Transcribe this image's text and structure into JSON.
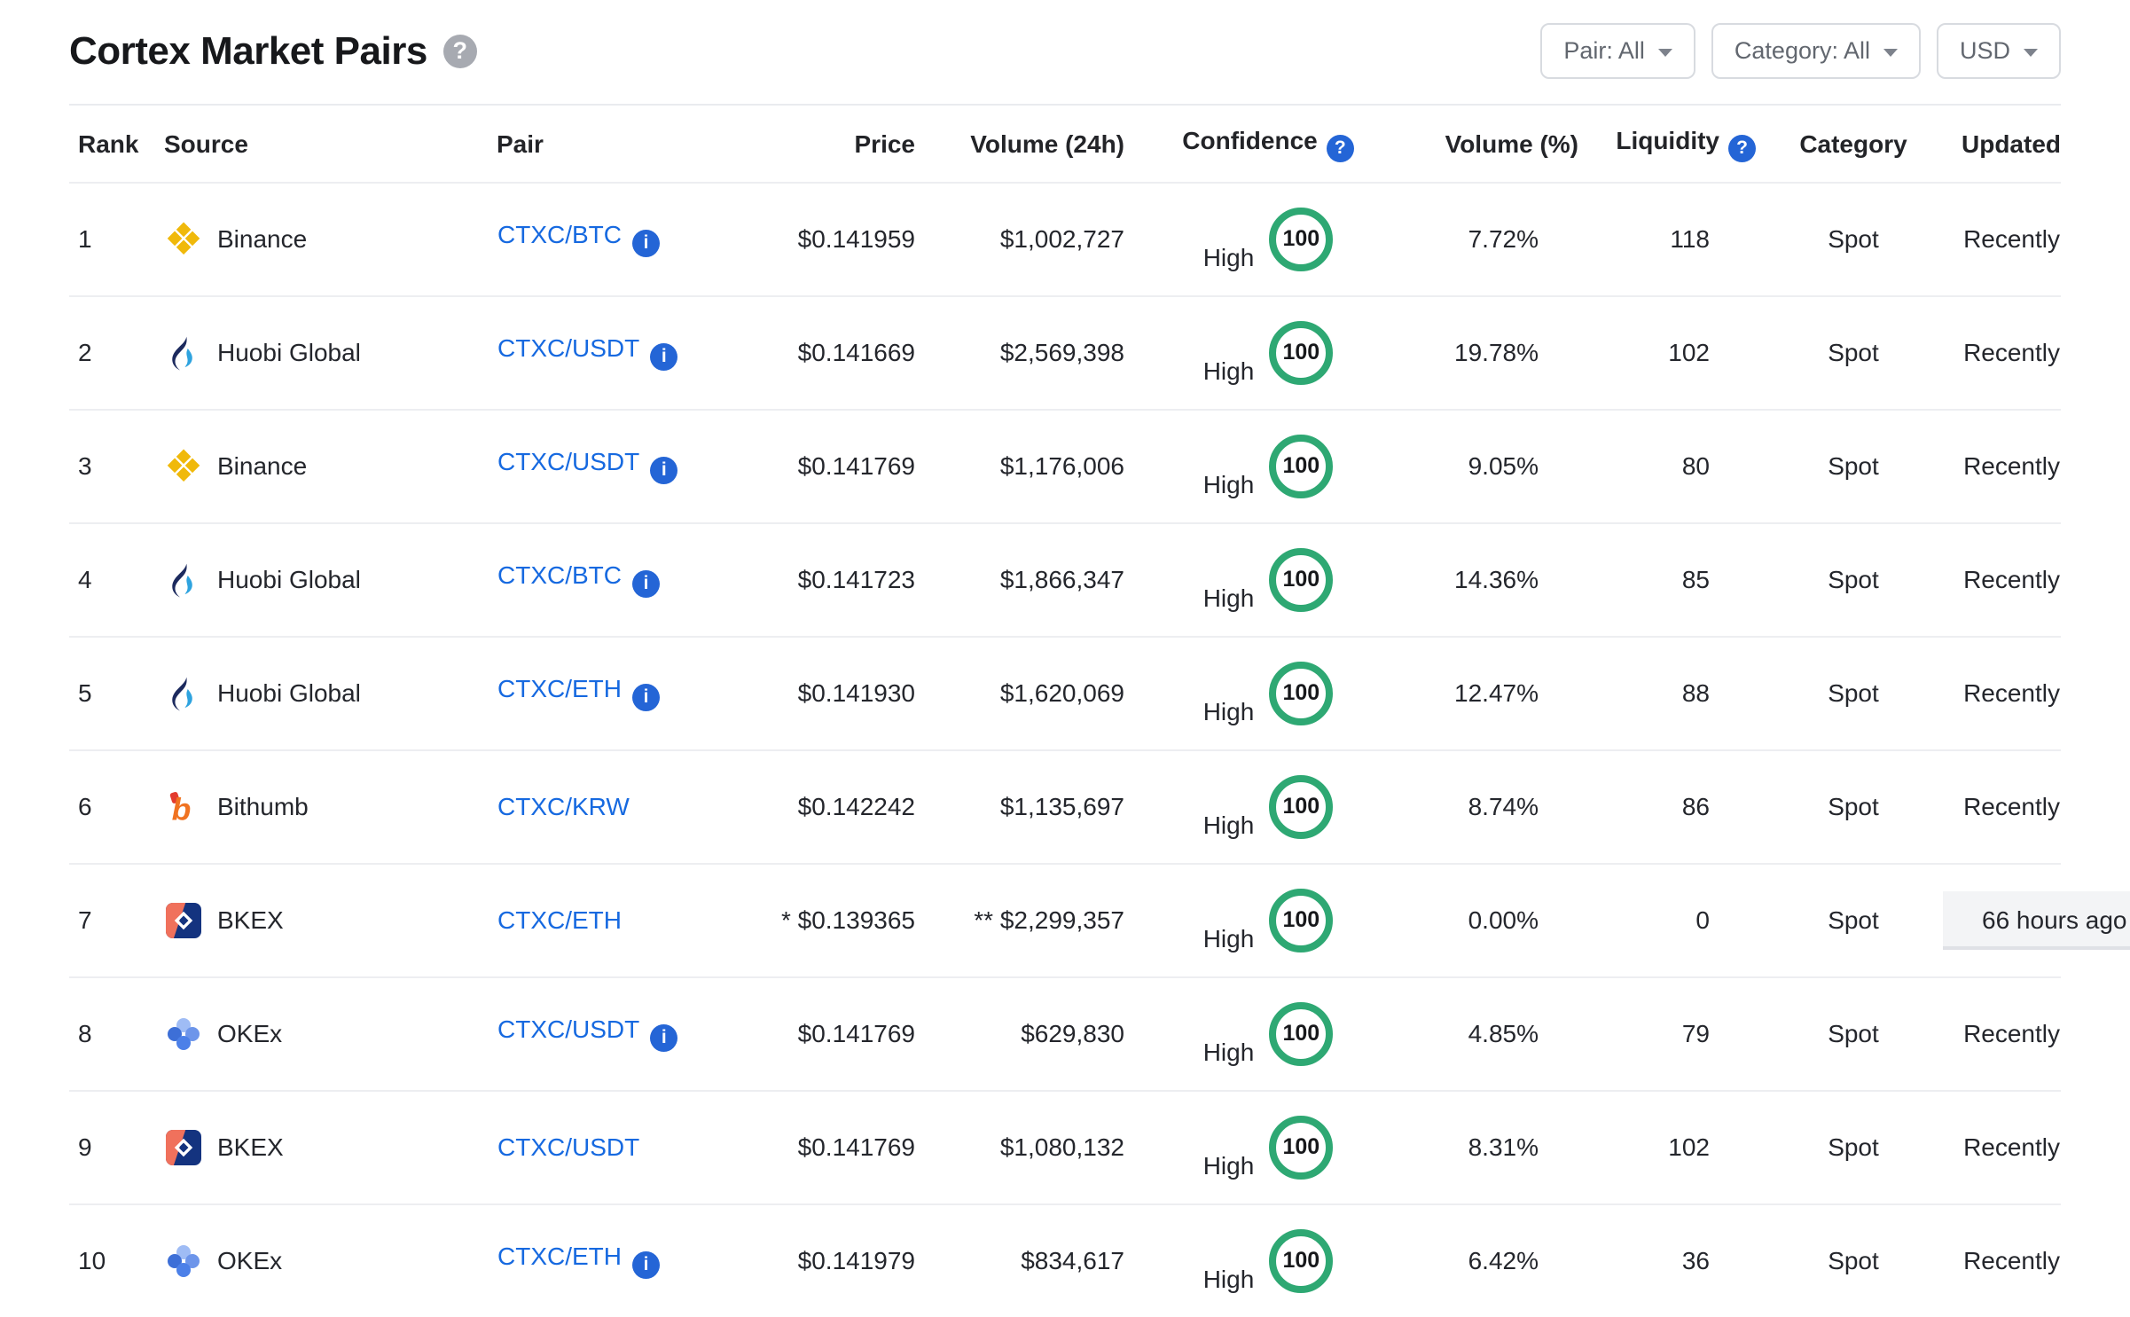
{
  "page": {
    "title": "Cortex Market Pairs"
  },
  "icons": {
    "help_glyph": "?",
    "info_glyph": "i"
  },
  "filters": [
    {
      "label": "Pair: All"
    },
    {
      "label": "Category: All"
    },
    {
      "label": "USD"
    }
  ],
  "table": {
    "columns": [
      {
        "label": "Rank"
      },
      {
        "label": "Source"
      },
      {
        "label": "Pair"
      },
      {
        "label": "Price"
      },
      {
        "label": "Volume (24h)"
      },
      {
        "label": "Confidence",
        "help": true
      },
      {
        "label": "Volume (%)"
      },
      {
        "label": "Liquidity",
        "help": true
      },
      {
        "label": "Category"
      },
      {
        "label": "Updated"
      }
    ],
    "rows": [
      {
        "rank": "1",
        "source": "Binance",
        "logo": "binance-logo",
        "pair": "CTXC/BTC",
        "pair_info": true,
        "price": "$0.141959",
        "volume_24h": "$1,002,727",
        "confidence": "High",
        "score": "100",
        "volume_pct": "7.72%",
        "liquidity": "118",
        "category": "Spot",
        "updated": "Recently",
        "updated_highlight": false
      },
      {
        "rank": "2",
        "source": "Huobi Global",
        "logo": "huobi-logo",
        "pair": "CTXC/USDT",
        "pair_info": true,
        "price": "$0.141669",
        "volume_24h": "$2,569,398",
        "confidence": "High",
        "score": "100",
        "volume_pct": "19.78%",
        "liquidity": "102",
        "category": "Spot",
        "updated": "Recently",
        "updated_highlight": false
      },
      {
        "rank": "3",
        "source": "Binance",
        "logo": "binance-logo",
        "pair": "CTXC/USDT",
        "pair_info": true,
        "price": "$0.141769",
        "volume_24h": "$1,176,006",
        "confidence": "High",
        "score": "100",
        "volume_pct": "9.05%",
        "liquidity": "80",
        "category": "Spot",
        "updated": "Recently",
        "updated_highlight": false
      },
      {
        "rank": "4",
        "source": "Huobi Global",
        "logo": "huobi-logo",
        "pair": "CTXC/BTC",
        "pair_info": true,
        "price": "$0.141723",
        "volume_24h": "$1,866,347",
        "confidence": "High",
        "score": "100",
        "volume_pct": "14.36%",
        "liquidity": "85",
        "category": "Spot",
        "updated": "Recently",
        "updated_highlight": false
      },
      {
        "rank": "5",
        "source": "Huobi Global",
        "logo": "huobi-logo",
        "pair": "CTXC/ETH",
        "pair_info": true,
        "price": "$0.141930",
        "volume_24h": "$1,620,069",
        "confidence": "High",
        "score": "100",
        "volume_pct": "12.47%",
        "liquidity": "88",
        "category": "Spot",
        "updated": "Recently",
        "updated_highlight": false
      },
      {
        "rank": "6",
        "source": "Bithumb",
        "logo": "bithumb-logo",
        "pair": "CTXC/KRW",
        "pair_info": false,
        "price": "$0.142242",
        "volume_24h": "$1,135,697",
        "confidence": "High",
        "score": "100",
        "volume_pct": "8.74%",
        "liquidity": "86",
        "category": "Spot",
        "updated": "Recently",
        "updated_highlight": false
      },
      {
        "rank": "7",
        "source": "BKEX",
        "logo": "bkex-logo",
        "pair": "CTXC/ETH",
        "pair_info": false,
        "price": "* $0.139365",
        "volume_24h": "** $2,299,357",
        "confidence": "High",
        "score": "100",
        "volume_pct": "0.00%",
        "liquidity": "0",
        "category": "Spot",
        "updated": "66 hours ago",
        "updated_highlight": true
      },
      {
        "rank": "8",
        "source": "OKEx",
        "logo": "okex-logo",
        "pair": "CTXC/USDT",
        "pair_info": true,
        "price": "$0.141769",
        "volume_24h": "$629,830",
        "confidence": "High",
        "score": "100",
        "volume_pct": "4.85%",
        "liquidity": "79",
        "category": "Spot",
        "updated": "Recently",
        "updated_highlight": false
      },
      {
        "rank": "9",
        "source": "BKEX",
        "logo": "bkex-logo",
        "pair": "CTXC/USDT",
        "pair_info": false,
        "price": "$0.141769",
        "volume_24h": "$1,080,132",
        "confidence": "High",
        "score": "100",
        "volume_pct": "8.31%",
        "liquidity": "102",
        "category": "Spot",
        "updated": "Recently",
        "updated_highlight": false
      },
      {
        "rank": "10",
        "source": "OKEx",
        "logo": "okex-logo",
        "pair": "CTXC/ETH",
        "pair_info": true,
        "price": "$0.141979",
        "volume_24h": "$834,617",
        "confidence": "High",
        "score": "100",
        "volume_pct": "6.42%",
        "liquidity": "36",
        "category": "Spot",
        "updated": "Recently",
        "updated_highlight": false
      }
    ]
  },
  "colors": {
    "link_blue": "#1669e0",
    "confidence_green": "#2ea873",
    "binance_gold": "#F0B90B",
    "row_border": "#edeef1",
    "filter_text": "#62676f"
  }
}
